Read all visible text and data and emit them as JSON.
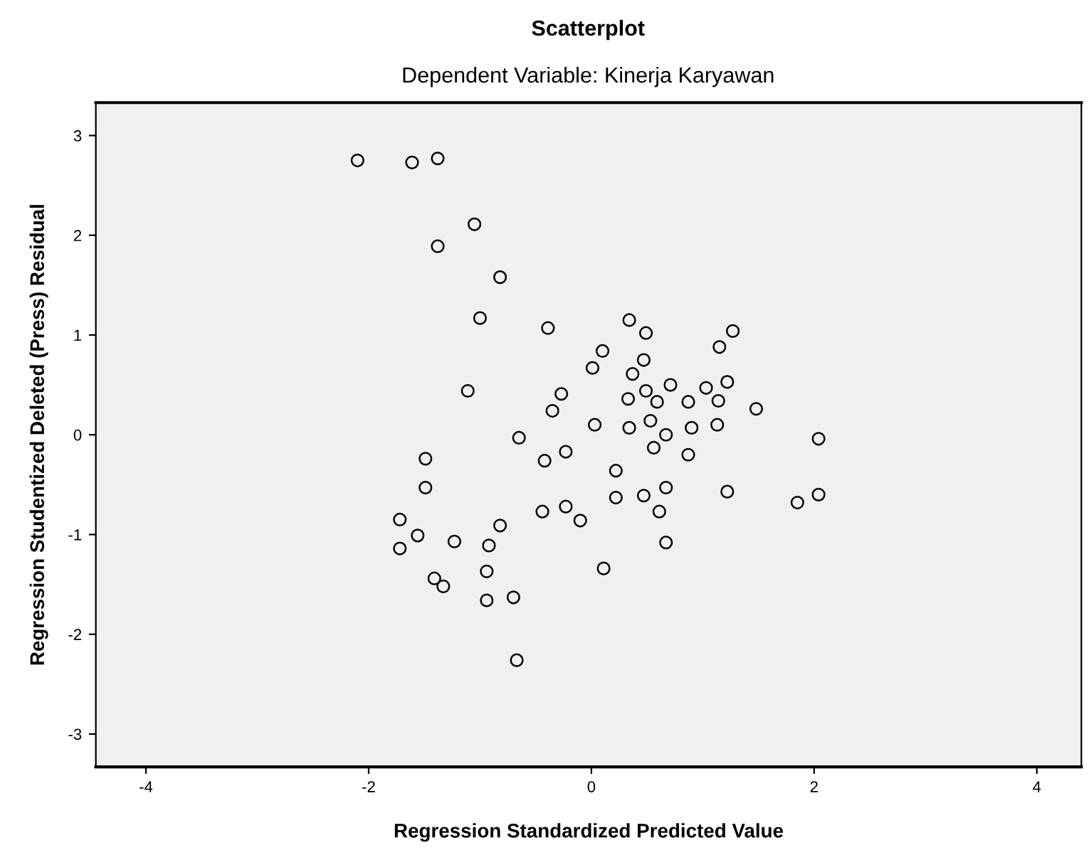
{
  "chart_data": {
    "type": "scatter",
    "title": "Scatterplot",
    "subtitle": "Dependent Variable: Kinerja Karyawan",
    "xlabel": "Regression Standardized Predicted Value",
    "ylabel": "Regression Studentized Deleted (Press) Residual",
    "xlim": [
      -4.45,
      4.4
    ],
    "ylim": [
      -3.33,
      3.33
    ],
    "xticks": [
      -4,
      -2,
      0,
      2,
      4
    ],
    "yticks": [
      -3,
      -2,
      -1,
      0,
      1,
      2,
      3
    ],
    "grid": false,
    "marker": "circle",
    "series": [
      {
        "color": "#000000",
        "x": [
          -2.1,
          -1.61,
          -1.38,
          -1.05,
          -1.38,
          -0.82,
          -1.0,
          -1.11,
          -0.65,
          -1.49,
          -1.49,
          -1.72,
          -1.72,
          -1.56,
          -1.23,
          -0.92,
          -0.82,
          -1.41,
          -1.33,
          -0.94,
          -0.94,
          -0.7,
          -0.67,
          -0.39,
          0.34,
          0.49,
          0.1,
          0.01,
          0.47,
          0.37,
          1.27,
          1.15,
          -0.27,
          -0.35,
          0.33,
          0.49,
          0.59,
          0.71,
          0.87,
          1.03,
          1.14,
          1.22,
          1.48,
          0.03,
          0.34,
          0.53,
          0.67,
          0.9,
          1.13,
          2.04,
          0.56,
          -0.23,
          0.87,
          -0.42,
          0.22,
          -0.44,
          -0.23,
          -0.1,
          0.22,
          0.47,
          0.67,
          0.61,
          1.22,
          1.85,
          2.04,
          0.67,
          0.11
        ],
        "values": [
          2.75,
          2.73,
          2.77,
          2.11,
          1.89,
          1.58,
          1.17,
          0.44,
          -0.03,
          -0.24,
          -0.53,
          -0.85,
          -1.14,
          -1.01,
          -1.07,
          -1.11,
          -0.91,
          -1.44,
          -1.52,
          -1.37,
          -1.66,
          -1.63,
          -2.26,
          1.07,
          1.15,
          1.02,
          0.84,
          0.67,
          0.75,
          0.61,
          1.04,
          0.88,
          0.41,
          0.24,
          0.36,
          0.44,
          0.33,
          0.5,
          0.33,
          0.47,
          0.34,
          0.53,
          0.26,
          0.1,
          0.07,
          0.14,
          0.0,
          0.07,
          0.1,
          -0.04,
          -0.13,
          -0.17,
          -0.2,
          -0.26,
          -0.36,
          -0.77,
          -0.72,
          -0.86,
          -0.63,
          -0.61,
          -0.53,
          -0.77,
          -0.57,
          -0.68,
          -0.6,
          -1.08,
          -1.34
        ]
      }
    ]
  }
}
